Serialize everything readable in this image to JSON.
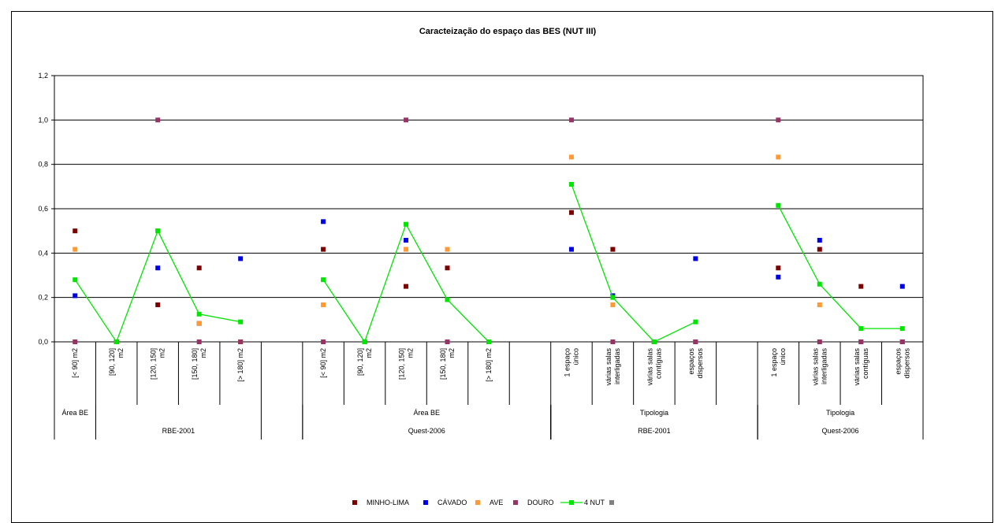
{
  "chart_data": {
    "type": "line",
    "title": "Caracteização do espaço das BES (NUT III)",
    "ylim": [
      0,
      1.2
    ],
    "yticks": [
      "0,0",
      "0,2",
      "0,4",
      "0,6",
      "0,8",
      "1,0",
      "1,2"
    ],
    "grid": true,
    "legend_position": "bottom",
    "categories": [
      [
        "[< 90] m2"
      ],
      [
        "[90, 120]",
        "m2"
      ],
      [
        "[120, 150]",
        "m2"
      ],
      [
        "[150, 180]",
        "m2"
      ],
      [
        "[> 180] m2"
      ],
      [],
      [
        "[< 90] m2"
      ],
      [
        "[90, 120]",
        "m2"
      ],
      [
        "[120, 150]",
        "m2"
      ],
      [
        "[150, 180]",
        "m2"
      ],
      [
        "[> 180] m2"
      ],
      [],
      [
        "1 espaço",
        "único"
      ],
      [
        "várias salas",
        "interligadas"
      ],
      [
        "várias salas",
        "contíguas"
      ],
      [
        "espaços",
        "dispersos"
      ],
      [],
      [
        "1 espaço",
        "único"
      ],
      [
        "várias salas",
        "interligadas"
      ],
      [
        "várias salas",
        "contíguas"
      ],
      [
        "espaços",
        "dispersos"
      ]
    ],
    "group_labels_level1": [
      {
        "label": "Área BE",
        "start": 0,
        "end": 0
      },
      {
        "label": "Área BE",
        "start": 6,
        "end": 11
      },
      {
        "label": "Tipologia",
        "start": 12,
        "end": 16
      },
      {
        "label": "Tipologia",
        "start": 17,
        "end": 20
      }
    ],
    "group_labels_level2": [
      {
        "label": "RBE-2001",
        "start": 1,
        "end": 4
      },
      {
        "label": "Quest-2006",
        "start": 6,
        "end": 11
      },
      {
        "label": "RBE-2001",
        "start": 12,
        "end": 16
      },
      {
        "label": "Quest-2006",
        "start": 17,
        "end": 20
      }
    ],
    "series": [
      {
        "name": "MINHO-LIMA",
        "color": "#7b0000",
        "kind": "marker",
        "values": [
          0.5,
          0.0,
          0.167,
          0.333,
          0.0,
          null,
          0.417,
          0.0,
          0.25,
          0.333,
          0.0,
          null,
          0.583,
          0.417,
          0.0,
          0.0,
          null,
          0.333,
          0.417,
          0.25,
          0.0
        ]
      },
      {
        "name": "CÁVADO",
        "color": "#0000e6",
        "kind": "marker",
        "values": [
          0.208,
          0.0,
          0.333,
          0.083,
          0.375,
          null,
          0.542,
          0.0,
          0.458,
          0.0,
          0.0,
          null,
          0.417,
          0.208,
          0.0,
          0.375,
          null,
          0.292,
          0.458,
          0.0,
          0.25
        ]
      },
      {
        "name": "AVE",
        "color": "#ff9933",
        "kind": "marker",
        "values": [
          0.417,
          0.0,
          0.5,
          0.083,
          0.0,
          null,
          0.167,
          0.0,
          0.417,
          0.417,
          0.0,
          null,
          0.833,
          0.167,
          0.0,
          0.0,
          null,
          0.833,
          0.167,
          0.0,
          0.0
        ]
      },
      {
        "name": "DOURO",
        "color": "#993366",
        "kind": "marker",
        "values": [
          0.0,
          0.0,
          1.0,
          0.0,
          0.0,
          null,
          0.0,
          0.0,
          1.0,
          0.0,
          0.0,
          null,
          1.0,
          0.0,
          0.0,
          0.0,
          null,
          1.0,
          0.0,
          0.0,
          0.0
        ]
      },
      {
        "name": "4 NUT",
        "color": "#00e600",
        "kind": "line",
        "values": [
          0.28,
          0.0,
          0.5,
          0.125,
          0.09,
          null,
          0.28,
          0.0,
          0.53,
          0.19,
          0.0,
          null,
          0.71,
          0.2,
          0.0,
          0.09,
          null,
          0.615,
          0.26,
          0.06,
          0.06
        ]
      }
    ],
    "legend_extra_color": "#808080"
  }
}
